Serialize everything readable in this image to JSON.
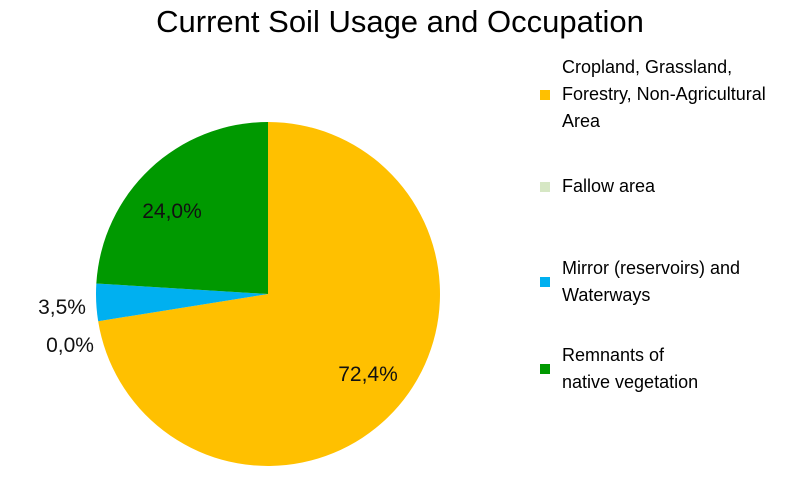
{
  "chart_data": {
    "type": "pie",
    "title": "Current Soil Usage and Occupation",
    "slices": [
      {
        "label": "Cropland, Grassland, Forestry, Non-Agricultural Area",
        "value": 72.4,
        "data_label": "72,4%",
        "color": "#ffc000"
      },
      {
        "label": "Fallow area",
        "value": 0.0,
        "data_label": "0,0%",
        "color": "#d6e7c4"
      },
      {
        "label": "Mirror (reservoirs) and Waterways",
        "value": 3.5,
        "data_label": "3,5%",
        "color": "#00b0f0"
      },
      {
        "label": "Remnants of native vegetation",
        "value": 24.0,
        "data_label": "24,0%",
        "color": "#009900"
      }
    ],
    "legend_position": "right",
    "legend_lines": [
      [
        "Cropland, Grassland,",
        "Forestry, Non-Agricultural",
        "Area"
      ],
      [
        "Fallow area"
      ],
      [
        "Mirror (reservoirs) and",
        "Waterways"
      ],
      [
        "Remnants of",
        "native vegetation"
      ]
    ]
  }
}
